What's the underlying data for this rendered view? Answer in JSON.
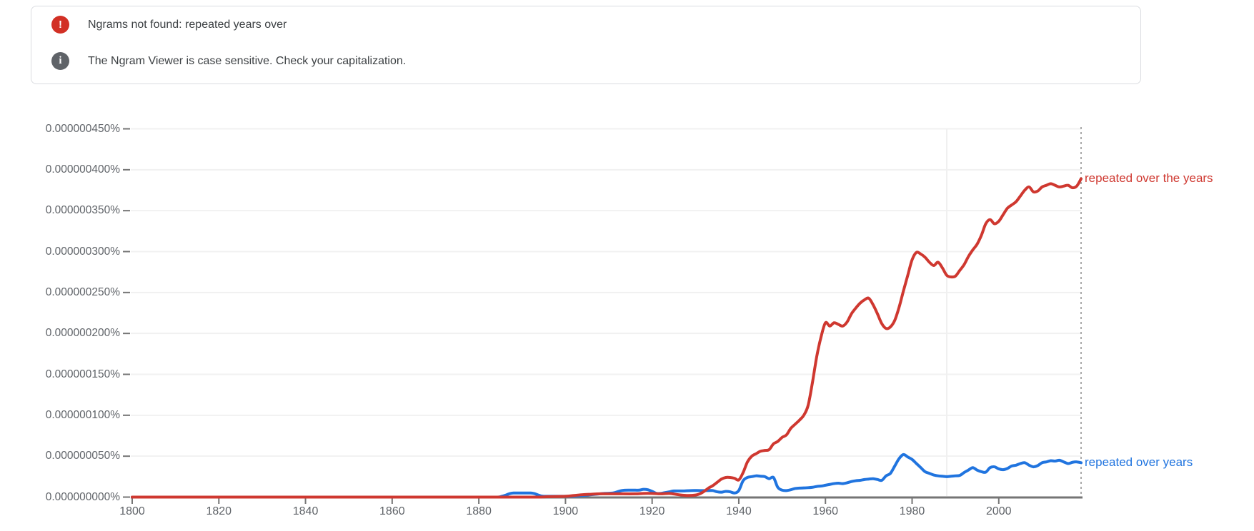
{
  "notifications": {
    "error": {
      "glyph": "!",
      "icon_color": "#d23025",
      "text": "Ngrams not found: repeated years over"
    },
    "info": {
      "glyph": "i",
      "icon_color": "#5f6368",
      "text": "The Ngram Viewer is case sensitive. Check your capitalization."
    }
  },
  "chart_data": {
    "type": "line",
    "title": "",
    "grid": "horizontal",
    "legend_position": "right-of-line-end",
    "x_axis": {
      "range": [
        1800,
        2019
      ],
      "ticks": [
        1800,
        1820,
        1840,
        1860,
        1880,
        1900,
        1920,
        1940,
        1960,
        1980,
        2000
      ]
    },
    "y_axis": {
      "unit": "percent",
      "max_e9": 450,
      "tick_step_e9": 50,
      "tick_labels": [
        "0.000000000%",
        "0.000000050%",
        "0.000000100%",
        "0.000000150%",
        "0.000000200%",
        "0.000000250%",
        "0.000000300%",
        "0.000000350%",
        "0.000000400%",
        "0.000000450%"
      ]
    },
    "value_unit_note": "series point values are in 1e-9 percent (billionths of a percent)",
    "end_guide_year": 2019,
    "faint_guide_year": 1988,
    "series": [
      {
        "name": "repeated over the years",
        "color": "#cf3830",
        "points": [
          [
            1800,
            0
          ],
          [
            1820,
            0
          ],
          [
            1840,
            0
          ],
          [
            1860,
            0
          ],
          [
            1880,
            0
          ],
          [
            1890,
            0
          ],
          [
            1894,
            0
          ],
          [
            1896,
            0.5
          ],
          [
            1900,
            1
          ],
          [
            1902,
            2
          ],
          [
            1904,
            3
          ],
          [
            1906,
            3.5
          ],
          [
            1908,
            4
          ],
          [
            1912,
            4
          ],
          [
            1916,
            4
          ],
          [
            1918,
            4.5
          ],
          [
            1920,
            4.5
          ],
          [
            1922,
            4
          ],
          [
            1924,
            4.5
          ],
          [
            1926,
            3
          ],
          [
            1928,
            2
          ],
          [
            1930,
            2.5
          ],
          [
            1931,
            4
          ],
          [
            1932,
            7
          ],
          [
            1933,
            11
          ],
          [
            1934,
            14
          ],
          [
            1935,
            18
          ],
          [
            1936,
            22
          ],
          [
            1937,
            24
          ],
          [
            1938,
            24
          ],
          [
            1939,
            23
          ],
          [
            1940,
            21
          ],
          [
            1941,
            30
          ],
          [
            1942,
            43
          ],
          [
            1943,
            50
          ],
          [
            1944,
            53
          ],
          [
            1945,
            56
          ],
          [
            1946,
            57
          ],
          [
            1947,
            58
          ],
          [
            1948,
            65
          ],
          [
            1949,
            68
          ],
          [
            1950,
            73
          ],
          [
            1951,
            76
          ],
          [
            1952,
            84
          ],
          [
            1953,
            89
          ],
          [
            1954,
            94
          ],
          [
            1955,
            100
          ],
          [
            1956,
            112
          ],
          [
            1957,
            140
          ],
          [
            1958,
            172
          ],
          [
            1959,
            196
          ],
          [
            1960,
            213
          ],
          [
            1961,
            209
          ],
          [
            1962,
            213
          ],
          [
            1963,
            211
          ],
          [
            1964,
            209
          ],
          [
            1965,
            214
          ],
          [
            1966,
            224
          ],
          [
            1967,
            231
          ],
          [
            1968,
            237
          ],
          [
            1969,
            241
          ],
          [
            1970,
            243
          ],
          [
            1971,
            235
          ],
          [
            1972,
            224
          ],
          [
            1973,
            212
          ],
          [
            1974,
            206
          ],
          [
            1975,
            208
          ],
          [
            1976,
            216
          ],
          [
            1977,
            232
          ],
          [
            1978,
            252
          ],
          [
            1979,
            271
          ],
          [
            1980,
            290
          ],
          [
            1981,
            299
          ],
          [
            1982,
            297
          ],
          [
            1983,
            293
          ],
          [
            1984,
            287
          ],
          [
            1985,
            283
          ],
          [
            1986,
            287
          ],
          [
            1987,
            280
          ],
          [
            1988,
            271
          ],
          [
            1989,
            269
          ],
          [
            1990,
            270
          ],
          [
            1991,
            277
          ],
          [
            1992,
            284
          ],
          [
            1993,
            294
          ],
          [
            1994,
            302
          ],
          [
            1995,
            309
          ],
          [
            1996,
            320
          ],
          [
            1997,
            334
          ],
          [
            1998,
            339
          ],
          [
            1999,
            334
          ],
          [
            2000,
            337
          ],
          [
            2001,
            345
          ],
          [
            2002,
            353
          ],
          [
            2003,
            357
          ],
          [
            2004,
            361
          ],
          [
            2005,
            368
          ],
          [
            2006,
            375
          ],
          [
            2007,
            379
          ],
          [
            2008,
            373
          ],
          [
            2009,
            374
          ],
          [
            2010,
            379
          ],
          [
            2011,
            381
          ],
          [
            2012,
            383
          ],
          [
            2013,
            381
          ],
          [
            2014,
            379
          ],
          [
            2015,
            380
          ],
          [
            2016,
            381
          ],
          [
            2017,
            378
          ],
          [
            2018,
            380
          ],
          [
            2019,
            389
          ]
        ]
      },
      {
        "name": "repeated over years",
        "color": "#2074df",
        "points": [
          [
            1800,
            0
          ],
          [
            1820,
            0
          ],
          [
            1840,
            0
          ],
          [
            1860,
            0
          ],
          [
            1880,
            0
          ],
          [
            1884,
            0
          ],
          [
            1885,
            0.5
          ],
          [
            1886,
            2
          ],
          [
            1887,
            4
          ],
          [
            1888,
            5
          ],
          [
            1890,
            5
          ],
          [
            1892,
            5
          ],
          [
            1893,
            4
          ],
          [
            1894,
            2
          ],
          [
            1895,
            1
          ],
          [
            1898,
            1
          ],
          [
            1901,
            1
          ],
          [
            1903,
            1.5
          ],
          [
            1905,
            2.5
          ],
          [
            1907,
            3.5
          ],
          [
            1909,
            4.5
          ],
          [
            1911,
            5
          ],
          [
            1913,
            8
          ],
          [
            1915,
            8.5
          ],
          [
            1917,
            8.5
          ],
          [
            1918,
            9.5
          ],
          [
            1919,
            9
          ],
          [
            1920,
            7
          ],
          [
            1921,
            4.5
          ],
          [
            1922,
            4.5
          ],
          [
            1923,
            5.5
          ],
          [
            1924,
            6.5
          ],
          [
            1925,
            7.5
          ],
          [
            1927,
            7.5
          ],
          [
            1929,
            8
          ],
          [
            1931,
            8
          ],
          [
            1933,
            8
          ],
          [
            1934,
            8
          ],
          [
            1935,
            6.5
          ],
          [
            1936,
            6
          ],
          [
            1937,
            7
          ],
          [
            1938,
            6.5
          ],
          [
            1939,
            5
          ],
          [
            1940,
            8
          ],
          [
            1941,
            20
          ],
          [
            1942,
            24
          ],
          [
            1943,
            25
          ],
          [
            1944,
            26
          ],
          [
            1945,
            25.5
          ],
          [
            1946,
            25
          ],
          [
            1947,
            22.5
          ],
          [
            1948,
            24
          ],
          [
            1949,
            12
          ],
          [
            1950,
            8.5
          ],
          [
            1951,
            8
          ],
          [
            1952,
            9
          ],
          [
            1953,
            10.5
          ],
          [
            1954,
            11
          ],
          [
            1956,
            11.5
          ],
          [
            1957,
            12
          ],
          [
            1958,
            13
          ],
          [
            1959,
            13.5
          ],
          [
            1960,
            14.5
          ],
          [
            1961,
            15.5
          ],
          [
            1962,
            16.5
          ],
          [
            1963,
            17
          ],
          [
            1964,
            16.5
          ],
          [
            1965,
            17.5
          ],
          [
            1966,
            19
          ],
          [
            1967,
            20
          ],
          [
            1968,
            20.5
          ],
          [
            1969,
            21.5
          ],
          [
            1970,
            22
          ],
          [
            1971,
            22.5
          ],
          [
            1972,
            21.5
          ],
          [
            1973,
            20.5
          ],
          [
            1974,
            26
          ],
          [
            1975,
            29
          ],
          [
            1976,
            38
          ],
          [
            1977,
            47
          ],
          [
            1978,
            52
          ],
          [
            1979,
            49
          ],
          [
            1980,
            46
          ],
          [
            1981,
            41
          ],
          [
            1982,
            36
          ],
          [
            1983,
            31
          ],
          [
            1984,
            29
          ],
          [
            1985,
            27
          ],
          [
            1986,
            26
          ],
          [
            1987,
            25.5
          ],
          [
            1988,
            25
          ],
          [
            1989,
            25.5
          ],
          [
            1990,
            26
          ],
          [
            1991,
            26.5
          ],
          [
            1992,
            30
          ],
          [
            1993,
            33
          ],
          [
            1994,
            36
          ],
          [
            1995,
            33
          ],
          [
            1996,
            31
          ],
          [
            1997,
            30.5
          ],
          [
            1998,
            36
          ],
          [
            1999,
            37
          ],
          [
            2000,
            34.5
          ],
          [
            2001,
            33.5
          ],
          [
            2002,
            35
          ],
          [
            2003,
            38
          ],
          [
            2004,
            39
          ],
          [
            2005,
            41
          ],
          [
            2006,
            42
          ],
          [
            2007,
            39
          ],
          [
            2008,
            37
          ],
          [
            2009,
            38.5
          ],
          [
            2010,
            42
          ],
          [
            2011,
            43
          ],
          [
            2012,
            44.5
          ],
          [
            2013,
            44
          ],
          [
            2014,
            45
          ],
          [
            2015,
            43
          ],
          [
            2016,
            41
          ],
          [
            2017,
            42.5
          ],
          [
            2018,
            43
          ],
          [
            2019,
            42
          ]
        ]
      }
    ],
    "colors": {
      "gridline": "#f1f1f1",
      "axis": "#757575",
      "tick_label": "#5f6368",
      "end_guide": "#ababab",
      "notice_text": "#3c4043",
      "notice_border": "#dadce0"
    }
  }
}
